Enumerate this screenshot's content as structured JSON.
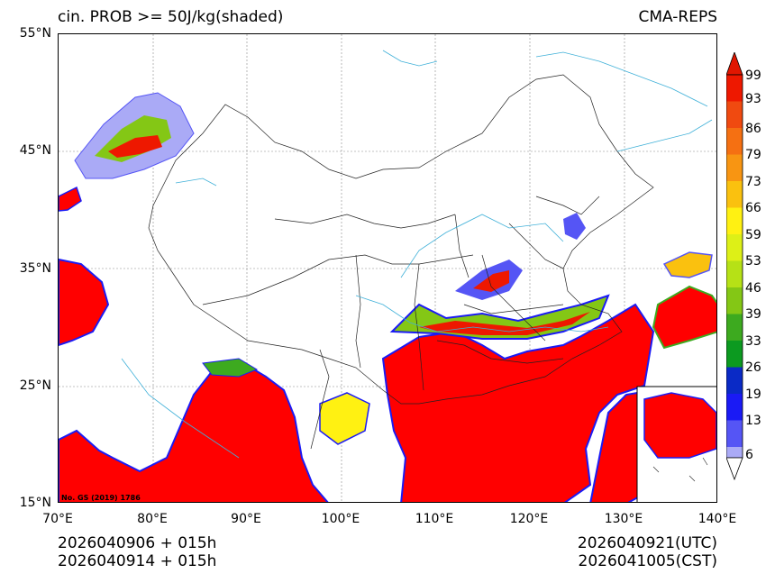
{
  "title_left": "cin. PROB >= 50J/kg(shaded)",
  "title_right": "CMA-REPS",
  "y_axis": [
    "55°N",
    "45°N",
    "35°N",
    "25°N",
    "15°N"
  ],
  "x_axis": [
    "70°E",
    "80°E",
    "90°E",
    "100°E",
    "110°E",
    "120°E",
    "130°E",
    "140°E"
  ],
  "colorbar": {
    "labels": [
      "99",
      "93",
      "86",
      "79",
      "73",
      "66",
      "59",
      "53",
      "46",
      "39",
      "33",
      "26",
      "19",
      "13",
      "6"
    ],
    "colors": [
      "#ee1800",
      "#f04a10",
      "#f57012",
      "#f89512",
      "#fac10f",
      "#fff112",
      "#ddf017",
      "#b6e116",
      "#84c715",
      "#3daa1f",
      "#0c9a20",
      "#0a2ac6",
      "#1a1af5",
      "#5555f5",
      "#aaaaf6"
    ],
    "top_arrow_color": "#e11600",
    "bottom_arrow_color": "#ffffff"
  },
  "footer_left": [
    "2026040906  +  015h",
    "2026040914  +  015h"
  ],
  "footer_right": [
    "2026040921(UTC)",
    "2026041005(CST)"
  ],
  "map_note": "No. GS (2019) 1786",
  "shade_color": "#ff0000"
}
